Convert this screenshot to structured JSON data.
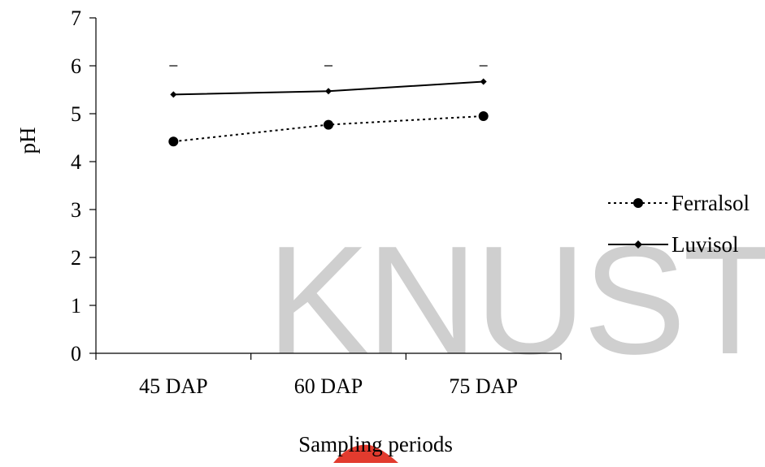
{
  "chart_data": {
    "type": "line",
    "categories": [
      "45 DAP",
      "60 DAP",
      "75 DAP"
    ],
    "series": [
      {
        "name": "Ferralsol",
        "values": [
          4.42,
          4.77,
          4.95
        ],
        "marker": "circle",
        "line_style": "dotted",
        "color": "#000000"
      },
      {
        "name": "Luvisol",
        "values": [
          5.4,
          5.47,
          5.67
        ],
        "marker": "diamond",
        "line_style": "solid",
        "color": "#000000"
      }
    ],
    "error_marks": [
      6,
      6,
      6
    ],
    "xlabel": "Sampling periods",
    "ylabel": "pH",
    "ylim": [
      0,
      7
    ],
    "yticks": [
      0,
      1,
      2,
      3,
      4,
      5,
      6,
      7
    ],
    "grid": false,
    "legend_position": "right"
  },
  "watermark": {
    "text": "KNUST",
    "color": "#cfcfcf",
    "logo_color": "#e23b2e"
  }
}
